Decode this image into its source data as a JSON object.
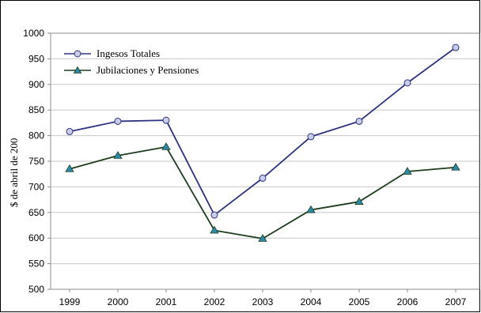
{
  "chart_data": {
    "type": "line",
    "title": "",
    "xlabel": "",
    "ylabel": "$ de abril de 200",
    "categories": [
      "1999",
      "2000",
      "2001",
      "2002",
      "2003",
      "2004",
      "2005",
      "2006",
      "2007"
    ],
    "ylim": [
      500,
      1000
    ],
    "yticks": [
      500,
      550,
      600,
      650,
      700,
      750,
      800,
      850,
      900,
      950,
      1000
    ],
    "grid": true,
    "legend_position": "top-left",
    "series": [
      {
        "name": "Ingesos Totales",
        "values": [
          808,
          828,
          830,
          645,
          717,
          798,
          828,
          903,
          972
        ],
        "color": "#2e3480",
        "marker": "circle",
        "marker_fill": "#c9cce8"
      },
      {
        "name": "Jubilaciones y Pensiones",
        "values": [
          735,
          761,
          778,
          615,
          599,
          655,
          671,
          730,
          738
        ],
        "color": "#1d3d1d",
        "marker": "triangle",
        "marker_fill": "#2b8aa8"
      }
    ]
  }
}
